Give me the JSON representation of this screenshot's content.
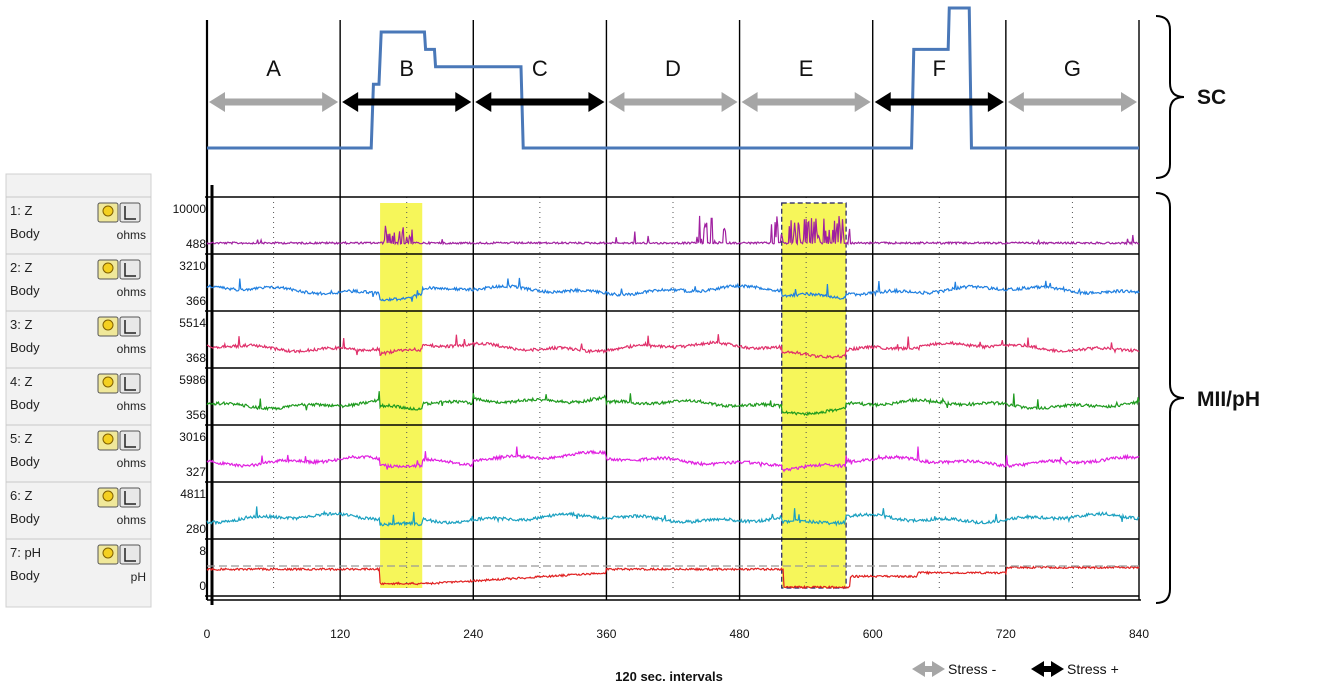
{
  "chart_data": {
    "type": "line",
    "xlabel": "120 sec. intervals",
    "xlim": [
      0,
      840
    ],
    "x_ticks": [
      "0",
      "120",
      "240",
      "360",
      "480",
      "600",
      "720",
      "840"
    ],
    "side_labels": {
      "top": "SC",
      "bottom": "MII/pH"
    },
    "colors": {
      "sc": "#4a78b8",
      "stress_minus": "#a6a6a6",
      "stress_plus": "#000000",
      "highlight": "#f6f65a"
    },
    "segments": [
      {
        "label": "A",
        "start": 0,
        "end": 120,
        "stress": "minus"
      },
      {
        "label": "B",
        "start": 120,
        "end": 240,
        "stress": "plus"
      },
      {
        "label": "C",
        "start": 240,
        "end": 360,
        "stress": "plus"
      },
      {
        "label": "D",
        "start": 360,
        "end": 480,
        "stress": "minus"
      },
      {
        "label": "E",
        "start": 480,
        "end": 600,
        "stress": "minus"
      },
      {
        "label": "F",
        "start": 600,
        "end": 720,
        "stress": "plus"
      },
      {
        "label": "G",
        "start": 720,
        "end": 840,
        "stress": "minus"
      }
    ],
    "legend": [
      {
        "label": "Stress -",
        "color": "#a6a6a6"
      },
      {
        "label": "Stress +",
        "color": "#000000"
      }
    ],
    "highlights": [
      {
        "start": 156,
        "end": 194
      },
      {
        "start": 518,
        "end": 576
      }
    ],
    "sc_series": {
      "levels_note": "relative level 0-1",
      "points": [
        [
          0,
          0.0
        ],
        [
          148,
          0.0
        ],
        [
          150,
          0.55
        ],
        [
          155,
          0.55
        ],
        [
          157,
          1.0
        ],
        [
          196,
          1.0
        ],
        [
          197,
          0.85
        ],
        [
          205,
          0.85
        ],
        [
          206,
          0.7
        ],
        [
          283,
          0.7
        ],
        [
          285,
          0.0
        ],
        [
          635,
          0.0
        ],
        [
          637,
          0.85
        ],
        [
          668,
          0.85
        ],
        [
          669,
          1.25
        ],
        [
          687,
          1.25
        ],
        [
          689,
          0.0
        ],
        [
          840,
          0.0
        ]
      ]
    },
    "channels": [
      {
        "name": "1: Z",
        "site": "Body",
        "unit": "ohms",
        "max": "10000",
        "min": "488",
        "color": "#a020a0"
      },
      {
        "name": "2: Z",
        "site": "Body",
        "unit": "ohms",
        "max": "3210",
        "min": "366",
        "color": "#1f7fe0"
      },
      {
        "name": "3: Z",
        "site": "Body",
        "unit": "ohms",
        "max": "5514",
        "min": "368",
        "color": "#e0306a"
      },
      {
        "name": "4: Z",
        "site": "Body",
        "unit": "ohms",
        "max": "5986",
        "min": "356",
        "color": "#1e9a1e"
      },
      {
        "name": "5: Z",
        "site": "Body",
        "unit": "ohms",
        "max": "3016",
        "min": "327",
        "color": "#e020e0"
      },
      {
        "name": "6: Z",
        "site": "Body",
        "unit": "ohms",
        "max": "4811",
        "min": "280",
        "color": "#1aa0c0"
      },
      {
        "name": "7: pH",
        "site": "Body",
        "unit": "pH",
        "max": "8",
        "min": "0",
        "color": "#e02020"
      }
    ]
  }
}
